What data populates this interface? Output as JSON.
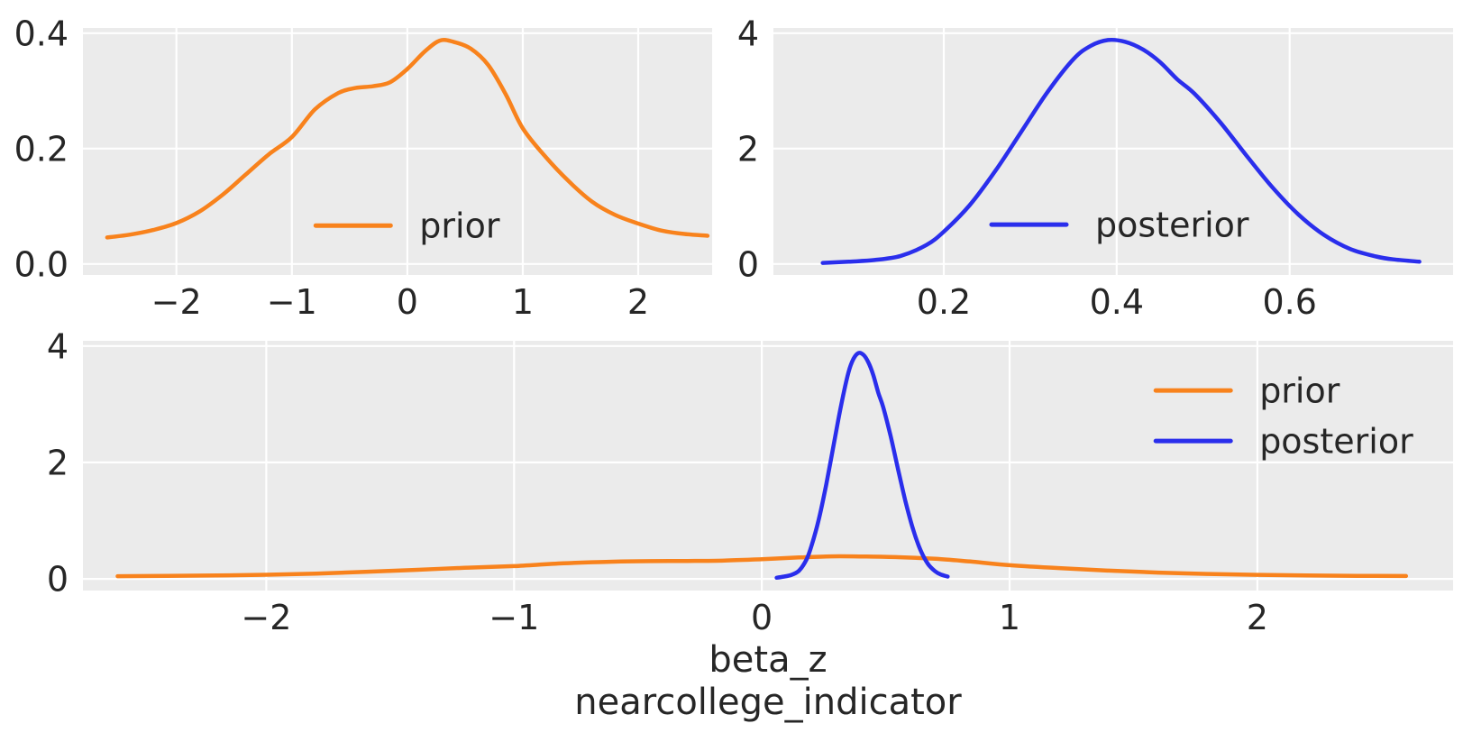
{
  "figure": {
    "background": "#ffffff",
    "panel_background": "#ebebeb",
    "grid_color": "#ffffff",
    "text_color": "#262626",
    "colors": {
      "prior": "#f8821c",
      "posterior": "#2a2eec"
    }
  },
  "chart_data": [
    {
      "id": "prior-marginal",
      "type": "line",
      "title": "",
      "xlim": [
        -2.81,
        2.64
      ],
      "ylim": [
        -0.019,
        0.409
      ],
      "xticks": [
        -2,
        -1,
        0,
        1,
        2
      ],
      "xtick_labels": [
        "−2",
        "−1",
        "0",
        "1",
        "2"
      ],
      "yticks": [
        0,
        0.2,
        0.4
      ],
      "ytick_labels": [
        "0.0",
        "0.2",
        "0.4"
      ],
      "grid": true,
      "legend": {
        "fx": 0.37,
        "fy": 0.8,
        "row_fdy": 0,
        "entries": [
          {
            "label": "prior",
            "color": "prior"
          }
        ]
      },
      "xlabel": [],
      "series": [
        {
          "name": "prior",
          "color": "prior",
          "x": [
            -2.6,
            -2.4,
            -2.2,
            -2.0,
            -1.8,
            -1.6,
            -1.4,
            -1.2,
            -1.0,
            -0.8,
            -0.6,
            -0.45,
            -0.3,
            -0.15,
            0.0,
            0.15,
            0.28,
            0.4,
            0.55,
            0.7,
            0.85,
            1.0,
            1.2,
            1.4,
            1.6,
            1.8,
            2.0,
            2.2,
            2.4,
            2.6
          ],
          "y": [
            0.046,
            0.051,
            0.059,
            0.071,
            0.091,
            0.12,
            0.155,
            0.19,
            0.22,
            0.268,
            0.296,
            0.305,
            0.308,
            0.315,
            0.338,
            0.368,
            0.387,
            0.385,
            0.373,
            0.345,
            0.295,
            0.235,
            0.185,
            0.143,
            0.108,
            0.085,
            0.07,
            0.058,
            0.052,
            0.049
          ]
        }
      ]
    },
    {
      "id": "posterior-marginal",
      "type": "line",
      "title": "",
      "xlim": [
        0.003,
        0.789
      ],
      "ylim": [
        -0.19,
        4.09
      ],
      "xticks": [
        0.2,
        0.4,
        0.6
      ],
      "xtick_labels": [
        "0.2",
        "0.4",
        "0.6"
      ],
      "yticks": [
        0,
        2,
        4
      ],
      "ytick_labels": [
        "0",
        "2",
        "4"
      ],
      "grid": true,
      "legend": {
        "fx": 0.321,
        "fy": 0.796,
        "row_fdy": 0,
        "entries": [
          {
            "label": "posterior",
            "color": "posterior"
          }
        ]
      },
      "xlabel": [],
      "series": [
        {
          "name": "posterior",
          "color": "posterior",
          "x": [
            0.06,
            0.09,
            0.12,
            0.15,
            0.18,
            0.2,
            0.23,
            0.26,
            0.29,
            0.32,
            0.35,
            0.37,
            0.39,
            0.41,
            0.43,
            0.45,
            0.47,
            0.49,
            0.52,
            0.55,
            0.58,
            0.61,
            0.64,
            0.67,
            0.7,
            0.72,
            0.75
          ],
          "y": [
            0.02,
            0.04,
            0.07,
            0.14,
            0.33,
            0.56,
            1.02,
            1.62,
            2.3,
            2.98,
            3.55,
            3.78,
            3.88,
            3.85,
            3.72,
            3.5,
            3.2,
            2.95,
            2.45,
            1.88,
            1.33,
            0.86,
            0.5,
            0.26,
            0.13,
            0.08,
            0.04
          ]
        }
      ]
    },
    {
      "id": "prior-posterior-overlay",
      "type": "line",
      "title": "",
      "xlim": [
        -2.74,
        2.79
      ],
      "ylim": [
        -0.2,
        4.09
      ],
      "xticks": [
        -2,
        -1,
        0,
        1,
        2
      ],
      "xtick_labels": [
        "−2",
        "−1",
        "0",
        "1",
        "2"
      ],
      "yticks": [
        0,
        2,
        4
      ],
      "ytick_labels": [
        "0",
        "2",
        "4"
      ],
      "grid": true,
      "legend": {
        "fx": 0.783,
        "fy": 0.199,
        "row_fdy": 0.202,
        "entries": [
          {
            "label": "prior",
            "color": "prior"
          },
          {
            "label": "posterior",
            "color": "posterior"
          }
        ]
      },
      "xlabel": [
        "beta_z",
        "nearcollege_indicator"
      ],
      "series": [
        {
          "name": "prior",
          "color": "prior",
          "x": [
            -2.6,
            -2.4,
            -2.2,
            -2.0,
            -1.8,
            -1.6,
            -1.4,
            -1.2,
            -1.0,
            -0.8,
            -0.6,
            -0.45,
            -0.3,
            -0.15,
            0.0,
            0.15,
            0.28,
            0.4,
            0.55,
            0.7,
            0.85,
            1.0,
            1.2,
            1.4,
            1.6,
            1.8,
            2.0,
            2.2,
            2.4,
            2.6
          ],
          "y": [
            0.046,
            0.051,
            0.059,
            0.071,
            0.091,
            0.12,
            0.155,
            0.19,
            0.22,
            0.268,
            0.296,
            0.305,
            0.308,
            0.315,
            0.338,
            0.368,
            0.387,
            0.385,
            0.373,
            0.345,
            0.295,
            0.235,
            0.185,
            0.143,
            0.108,
            0.085,
            0.07,
            0.058,
            0.052,
            0.049
          ]
        },
        {
          "name": "posterior",
          "color": "posterior",
          "x": [
            0.06,
            0.09,
            0.12,
            0.15,
            0.18,
            0.2,
            0.23,
            0.26,
            0.29,
            0.32,
            0.35,
            0.37,
            0.39,
            0.41,
            0.43,
            0.45,
            0.47,
            0.49,
            0.52,
            0.55,
            0.58,
            0.61,
            0.64,
            0.67,
            0.7,
            0.72,
            0.75
          ],
          "y": [
            0.02,
            0.04,
            0.07,
            0.14,
            0.33,
            0.56,
            1.02,
            1.62,
            2.3,
            2.98,
            3.55,
            3.78,
            3.88,
            3.85,
            3.72,
            3.5,
            3.2,
            2.95,
            2.45,
            1.88,
            1.33,
            0.86,
            0.5,
            0.26,
            0.13,
            0.08,
            0.04
          ]
        }
      ]
    }
  ]
}
